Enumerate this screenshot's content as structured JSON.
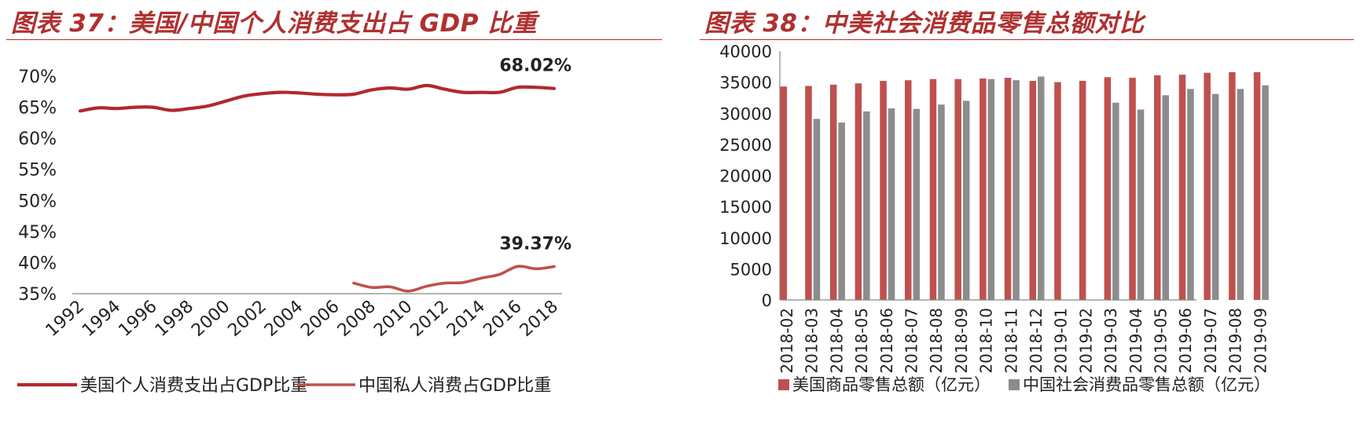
{
  "chart_data": [
    {
      "type": "line",
      "title": "图表 37：美国/中国个人消费支出占 GDP 比重",
      "xlabel": "",
      "ylabel": "",
      "ylim": [
        35,
        70
      ],
      "yticks": [
        "70%",
        "65%",
        "60%",
        "55%",
        "50%",
        "45%",
        "40%",
        "35%"
      ],
      "xticks": [
        "1992",
        "1994",
        "1996",
        "1998",
        "2000",
        "2002",
        "2004",
        "2006",
        "2008",
        "2010",
        "2012",
        "2014",
        "2016",
        "2018"
      ],
      "grid": false,
      "legend": "bottom",
      "colors": {
        "us": "#b3282d",
        "cn": "#c0504d"
      },
      "series": [
        {
          "name": "美国个人消费支出占GDP比重",
          "x": [
            1992,
            1993,
            1994,
            1995,
            1996,
            1997,
            1998,
            1999,
            2000,
            2001,
            2002,
            2003,
            2004,
            2005,
            2006,
            2007,
            2008,
            2009,
            2010,
            2011,
            2012,
            2013,
            2014,
            2015,
            2016,
            2017,
            2018
          ],
          "values": [
            64.4,
            64.9,
            64.8,
            65.0,
            65.0,
            64.5,
            64.8,
            65.2,
            66.0,
            66.8,
            67.2,
            67.4,
            67.3,
            67.1,
            67.0,
            67.1,
            67.8,
            68.1,
            67.9,
            68.5,
            67.9,
            67.4,
            67.4,
            67.4,
            68.2,
            68.2,
            68.02
          ],
          "end_label": "68.02%"
        },
        {
          "name": "中国私人消费占GDP比重",
          "x": [
            2007,
            2008,
            2009,
            2010,
            2011,
            2012,
            2013,
            2014,
            2015,
            2016,
            2017,
            2018
          ],
          "values": [
            36.7,
            36.0,
            36.1,
            35.4,
            36.2,
            36.7,
            36.8,
            37.5,
            38.1,
            39.4,
            39.0,
            39.37
          ],
          "end_label": "39.37%"
        }
      ]
    },
    {
      "type": "bar",
      "title": "图表 38：中美社会消费品零售总额对比",
      "xlabel": "",
      "ylabel": "",
      "ylim": [
        0,
        40000
      ],
      "yticks": [
        "40000",
        "35000",
        "30000",
        "25000",
        "20000",
        "15000",
        "10000",
        "5000",
        "0"
      ],
      "grid": false,
      "legend": "bottom",
      "categories": [
        "2018-02",
        "2018-03",
        "2018-04",
        "2018-05",
        "2018-06",
        "2018-07",
        "2018-08",
        "2018-09",
        "2018-10",
        "2018-11",
        "2018-12",
        "2019-01",
        "2019-02",
        "2019-03",
        "2019-04",
        "2019-05",
        "2019-06",
        "2019-07",
        "2019-08",
        "2019-09"
      ],
      "colors": {
        "us": "#c0504d",
        "cn": "#8c8c8c"
      },
      "series": [
        {
          "name": "美国商品零售总额（亿元）",
          "values": [
            34300,
            34400,
            34600,
            34800,
            35200,
            35300,
            35500,
            35500,
            35600,
            35700,
            35200,
            35000,
            35200,
            35800,
            35700,
            36100,
            36200,
            36500,
            36600,
            36600
          ]
        },
        {
          "name": "中国社会消费品零售总额（亿元）",
          "values": [
            null,
            29100,
            28500,
            30300,
            30800,
            30700,
            31400,
            32000,
            35500,
            35300,
            35900,
            null,
            null,
            31700,
            30600,
            32900,
            33900,
            33100,
            33900,
            34500
          ]
        }
      ]
    }
  ]
}
